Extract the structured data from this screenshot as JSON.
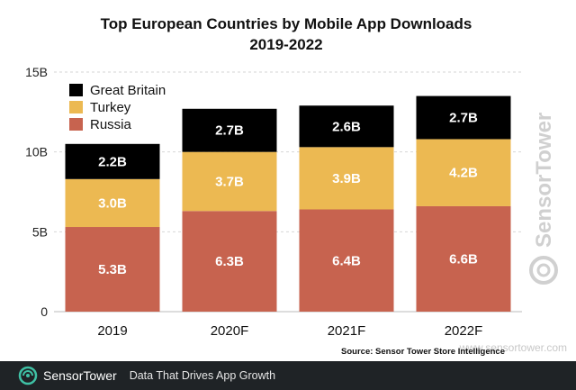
{
  "chart_data": {
    "type": "bar",
    "stacked": true,
    "title_lines": [
      "Top European Countries by Mobile App Downloads",
      "2019-2022"
    ],
    "categories": [
      "2019",
      "2020F",
      "2021F",
      "2022F"
    ],
    "series": [
      {
        "name": "Russia",
        "color": "#c7634f",
        "values": [
          5.3,
          6.3,
          6.4,
          6.6
        ],
        "labels": [
          "5.3B",
          "6.3B",
          "6.4B",
          "6.6B"
        ],
        "label_color": "#ffffff"
      },
      {
        "name": "Turkey",
        "color": "#ecb952",
        "values": [
          3.0,
          3.7,
          3.9,
          4.2
        ],
        "labels": [
          "3.0B",
          "3.7B",
          "3.9B",
          "4.2B"
        ],
        "label_color": "#ffffff"
      },
      {
        "name": "Great Britain",
        "color": "#000000",
        "values": [
          2.2,
          2.7,
          2.6,
          2.7
        ],
        "labels": [
          "2.2B",
          "2.7B",
          "2.6B",
          "2.7B"
        ],
        "label_color": "#ffffff"
      }
    ],
    "ylim": [
      0,
      15
    ],
    "yticks": [
      0,
      5,
      10,
      15
    ],
    "ytick_labels": [
      "0",
      "5B",
      "10B",
      "15B"
    ],
    "grid": true,
    "legend_placement": "top-left",
    "legend_order": [
      "Great Britain",
      "Turkey",
      "Russia"
    ],
    "source": "Source: Sensor Tower Store Intelligence"
  },
  "watermark": {
    "vertical_brand": "SensorTower",
    "site": "www.sensortower.com"
  },
  "footer": {
    "brand": "SensorTower",
    "tagline": "Data That Drives App Growth",
    "background": "#1f2326"
  }
}
